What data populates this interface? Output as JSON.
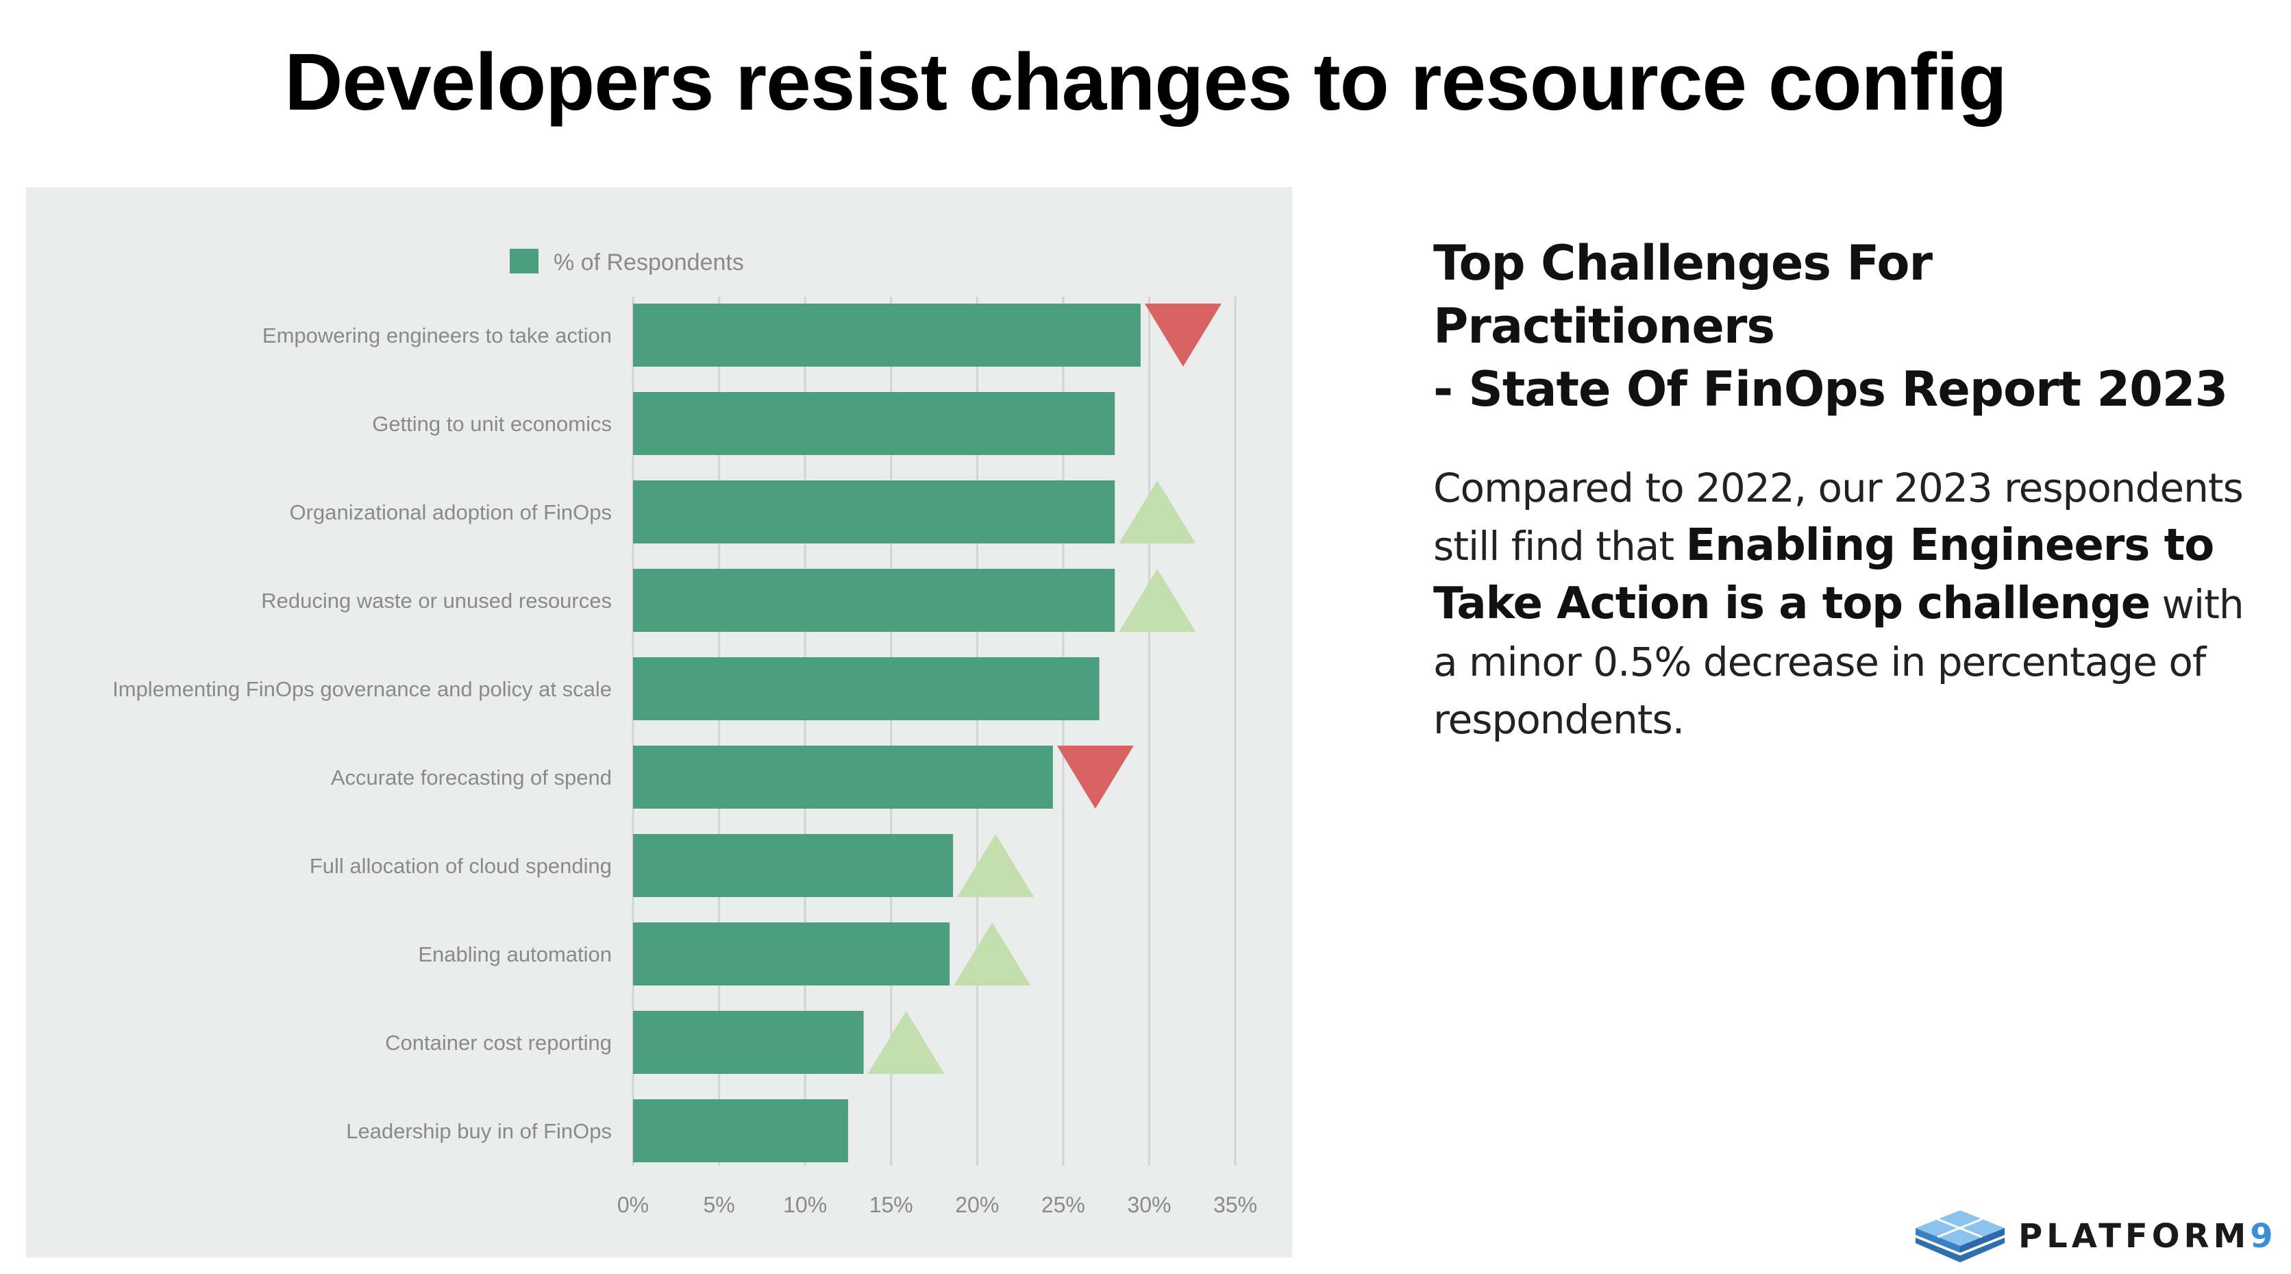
{
  "slide": {
    "title": "Developers resist changes to resource config"
  },
  "side_panel": {
    "title_lines": [
      "Top Challenges For Practitioners",
      "- State Of FinOps Report 2023"
    ],
    "body": {
      "part1": "Compared to 2022, our 2023 respondents still find that ",
      "bold": "Enabling Engineers to Take Action is a top challenge",
      "part2": " with a minor 0.5% decrease in percentage of respondents."
    }
  },
  "logo": {
    "text": "PLATFORM",
    "suffix": "9"
  },
  "colors": {
    "bar": "#4b9e7e",
    "decrease": "#d96363",
    "increase": "#c3dfad",
    "panel_bg": "#ebecec",
    "grid": "#d2d3d3",
    "label": "#8a8a8a"
  },
  "chart_data": {
    "type": "bar",
    "orientation": "horizontal",
    "legend": {
      "label": "% of Respondents",
      "position": "top"
    },
    "categories": [
      "Empowering engineers to take action",
      "Getting to unit economics",
      "Organizational adoption of FinOps",
      "Reducing waste or unused resources",
      "Implementing FinOps governance and policy at scale",
      "Accurate forecasting of spend",
      "Full allocation of cloud spending",
      "Enabling automation",
      "Container cost reporting",
      "Leadership buy in of FinOps"
    ],
    "values": [
      29.5,
      28.0,
      28.0,
      28.0,
      27.1,
      24.4,
      18.6,
      18.4,
      13.4,
      12.5
    ],
    "trend": [
      "down",
      "none",
      "up",
      "up",
      "none",
      "down",
      "up",
      "up",
      "up",
      "none"
    ],
    "xlim": [
      0,
      35
    ],
    "xticks": [
      0,
      5,
      10,
      15,
      20,
      25,
      30,
      35
    ],
    "xtick_labels": [
      "0%",
      "5%",
      "10%",
      "15%",
      "20%",
      "25%",
      "30%",
      "35%"
    ],
    "grid": true
  }
}
